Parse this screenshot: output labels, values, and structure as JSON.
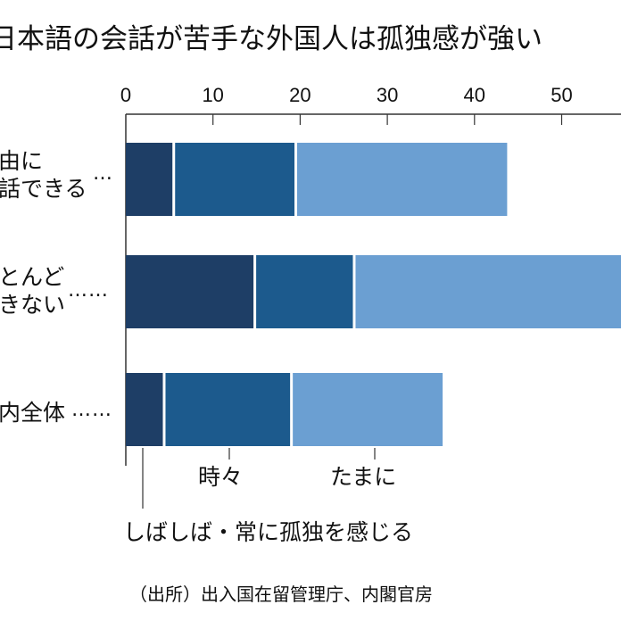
{
  "title": "日本語の会話が苦手な外国人は孤独感が強い",
  "source": "（出所）出入国在留管理庁、内閣官房",
  "chart_data": {
    "type": "bar",
    "orientation": "horizontal",
    "stacked": true,
    "title": "日本語の会話が苦手な外国人は孤独感が強い",
    "xlim": [
      0,
      57
    ],
    "xticks": [
      "0",
      "10",
      "20",
      "30",
      "40",
      "50"
    ],
    "grid": false,
    "categories": [
      {
        "lines": [
          "由に",
          "話できる"
        ],
        "dots": "…"
      },
      {
        "lines": [
          "とんど",
          "きない"
        ],
        "dots": "……"
      },
      {
        "lines": [
          "内全体"
        ],
        "dots": "……"
      }
    ],
    "series": [
      {
        "name": "しばしば・常に孤独を感じる",
        "color": "#1e3e66",
        "values": [
          5.5,
          14.8,
          4.4
        ]
      },
      {
        "name": "時々",
        "color": "#1c5a8d",
        "values": [
          14.0,
          11.4,
          14.6
        ]
      },
      {
        "name": "たまに",
        "color": "#6b9fd2",
        "values": [
          24.4,
          31.0,
          17.5
        ]
      }
    ]
  }
}
